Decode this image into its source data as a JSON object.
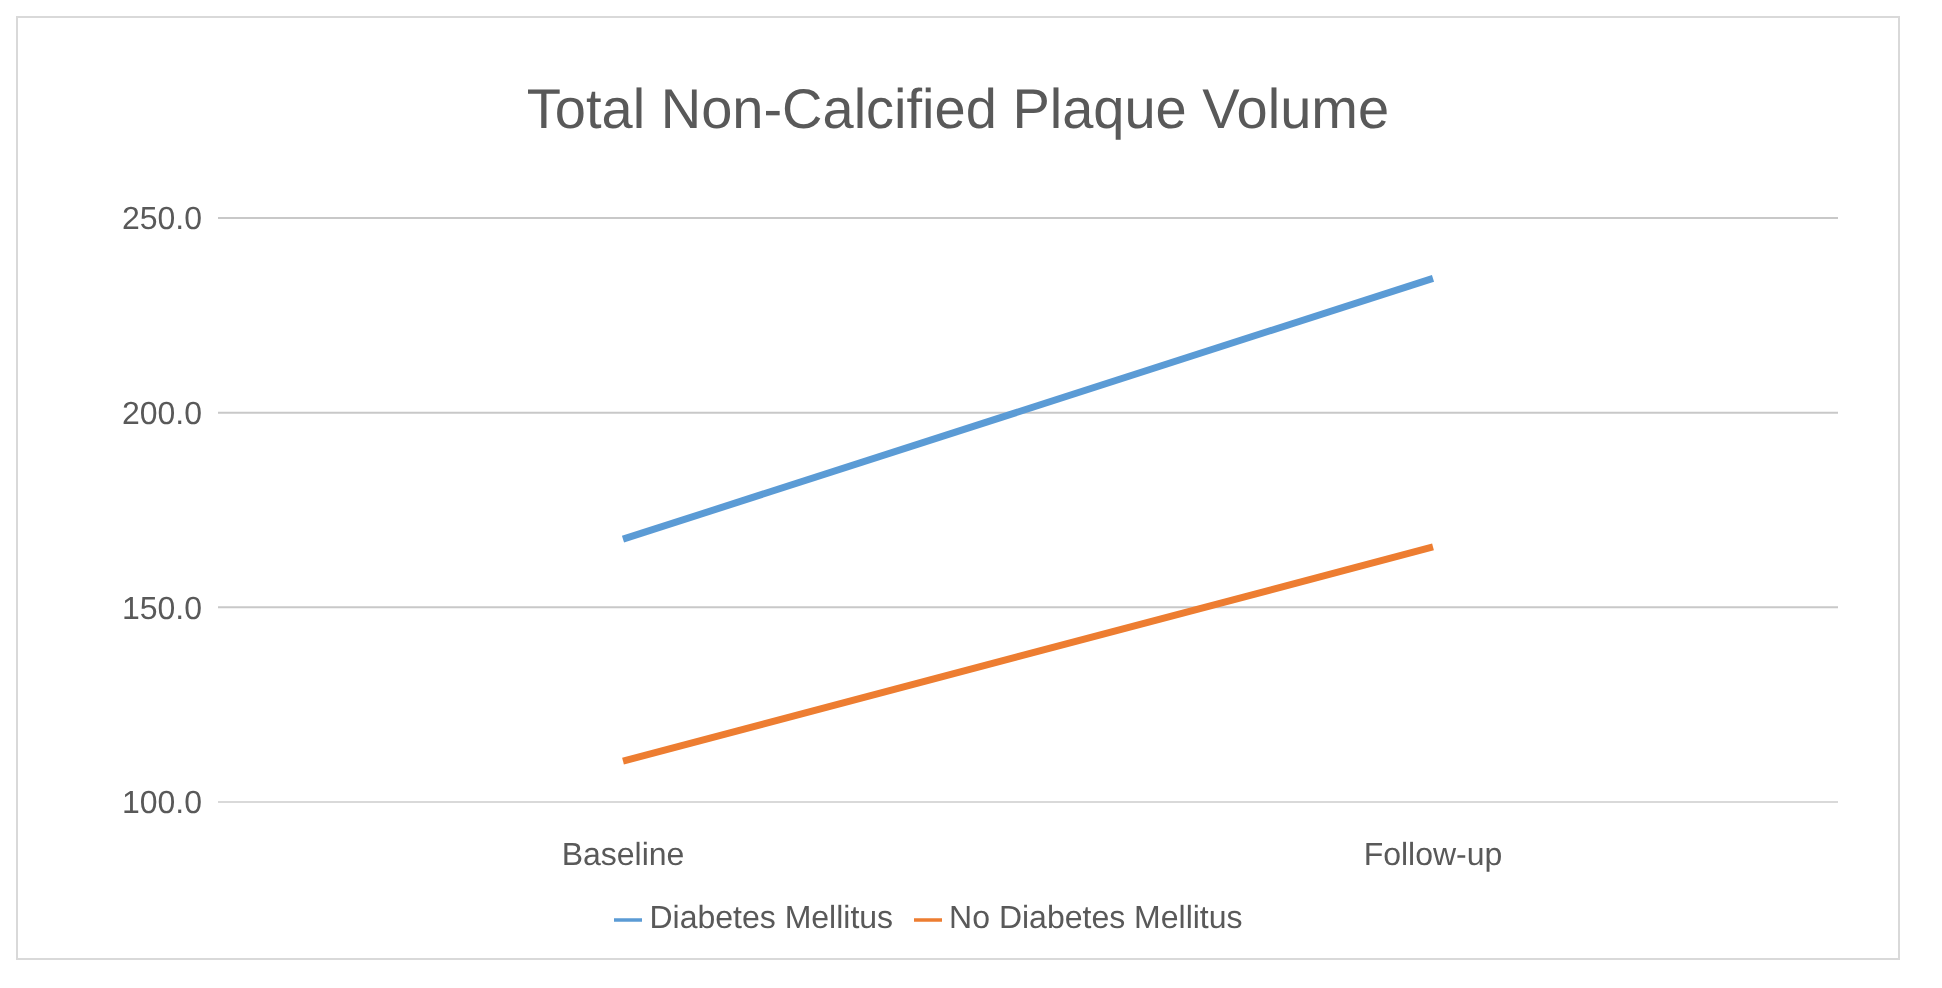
{
  "chart_data": {
    "type": "line",
    "title": "Total Non-Calcified Plaque Volume",
    "categories": [
      "Baseline",
      "Follow-up"
    ],
    "series": [
      {
        "name": "Diabetes Mellitus",
        "color": "#5b9bd5",
        "values": [
          167.5,
          234.5
        ]
      },
      {
        "name": "No Diabetes Mellitus",
        "color": "#ed7d31",
        "values": [
          110.5,
          165.5
        ]
      }
    ],
    "ylim": [
      100,
      250
    ],
    "yticks": [
      {
        "value": 100,
        "label": "100.0"
      },
      {
        "value": 150,
        "label": "150.0"
      },
      {
        "value": 200,
        "label": "200.0"
      },
      {
        "value": 250,
        "label": "250.0"
      }
    ],
    "grid": "y",
    "legend": "bottom",
    "marker": "none",
    "line_style": "solid"
  }
}
